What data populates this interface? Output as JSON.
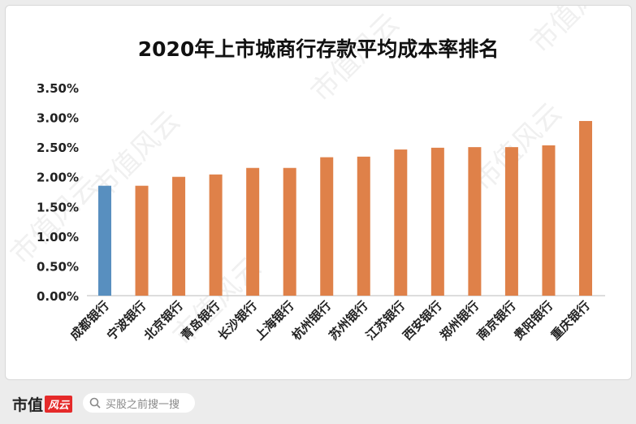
{
  "chart_data": {
    "type": "bar",
    "title": "2020年上市城商行存款平均成本率排名",
    "categories": [
      "成都银行",
      "宁波银行",
      "北京银行",
      "青岛银行",
      "长沙银行",
      "上海银行",
      "杭州银行",
      "苏州银行",
      "江苏银行",
      "西安银行",
      "郑州银行",
      "南京银行",
      "贵阳银行",
      "重庆银行"
    ],
    "values": [
      1.85,
      1.85,
      2.0,
      2.04,
      2.15,
      2.15,
      2.33,
      2.34,
      2.46,
      2.49,
      2.5,
      2.5,
      2.53,
      2.94
    ],
    "value_unit": "%",
    "highlight_index": 0,
    "colors": {
      "highlight": "#588fbf",
      "default": "#df8149"
    },
    "ylim": [
      0,
      3.5
    ],
    "yticks": [
      "0.00%",
      "0.50%",
      "1.00%",
      "1.50%",
      "2.00%",
      "2.50%",
      "3.00%",
      "3.50%"
    ],
    "grid": false,
    "xlabel": "",
    "ylabel": ""
  },
  "watermark": "市值风云",
  "footer": {
    "logo_text": "市值",
    "logo_badge": "风云",
    "search_placeholder": "买股之前搜一搜"
  }
}
